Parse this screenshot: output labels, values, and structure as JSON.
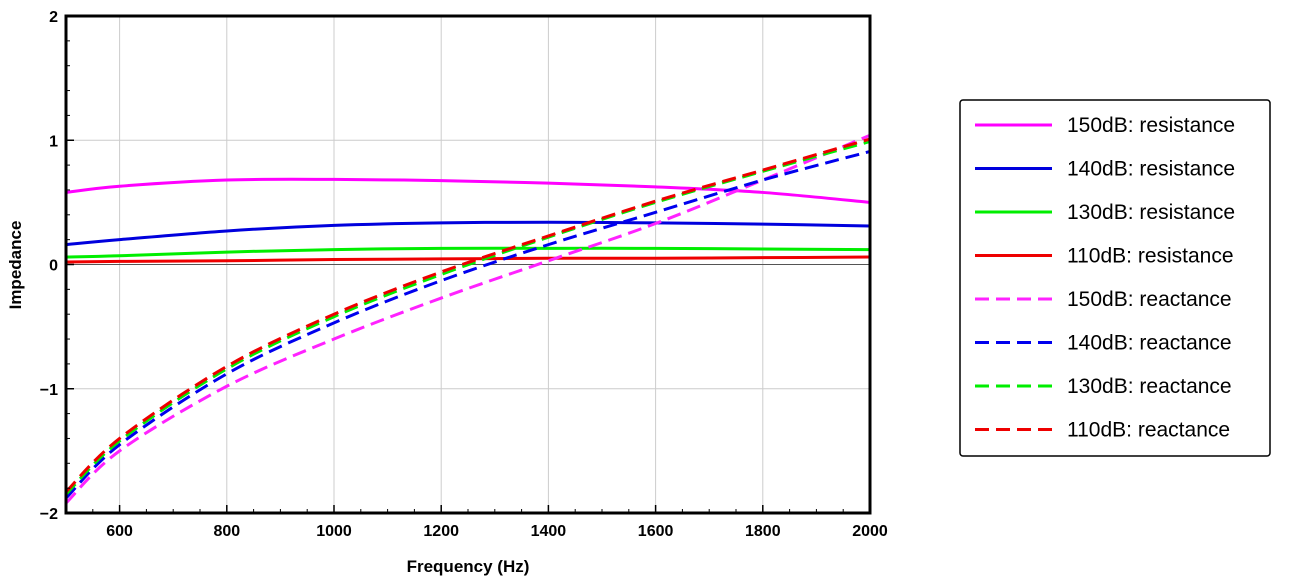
{
  "chart_data": {
    "type": "line",
    "title": "",
    "xlabel": "Frequency (Hz)",
    "ylabel": "Impedance",
    "xlim": [
      500,
      2000
    ],
    "ylim": [
      -2,
      2
    ],
    "x_ticks": [
      600,
      800,
      1000,
      1200,
      1400,
      1600,
      1800,
      2000
    ],
    "x_tick_labels": [
      "600",
      "800",
      "1000",
      "1200",
      "1400",
      "1600",
      "1800",
      "2000"
    ],
    "y_ticks": [
      -2,
      -1,
      0,
      1,
      2
    ],
    "y_tick_labels": [
      "−2",
      "−1",
      "0",
      "1",
      "2"
    ],
    "grid": true,
    "legend_position": "right",
    "x": [
      500,
      600,
      800,
      1000,
      1200,
      1400,
      1600,
      1800,
      2000
    ],
    "series": [
      {
        "name": "150dB: resistance",
        "color": "#ff00ff",
        "style": "solid",
        "values": [
          0.58,
          0.63,
          0.68,
          0.685,
          0.675,
          0.655,
          0.625,
          0.58,
          0.5
        ]
      },
      {
        "name": "140dB: resistance",
        "color": "#0000dd",
        "style": "solid",
        "values": [
          0.16,
          0.2,
          0.27,
          0.315,
          0.335,
          0.34,
          0.335,
          0.325,
          0.31
        ]
      },
      {
        "name": "130dB: resistance",
        "color": "#00ee00",
        "style": "solid",
        "values": [
          0.06,
          0.07,
          0.1,
          0.12,
          0.13,
          0.13,
          0.13,
          0.125,
          0.12
        ]
      },
      {
        "name": "110dB: resistance",
        "color": "#ee0000",
        "style": "solid",
        "values": [
          0.02,
          0.025,
          0.03,
          0.04,
          0.045,
          0.05,
          0.05,
          0.055,
          0.06
        ]
      },
      {
        "name": "150dB: reactance",
        "color": "#ff22ff",
        "style": "dashed",
        "values": [
          -1.92,
          -1.5,
          -0.98,
          -0.6,
          -0.27,
          0.03,
          0.33,
          0.68,
          1.04
        ]
      },
      {
        "name": "140dB: reactance",
        "color": "#0000ee",
        "style": "dashed",
        "values": [
          -1.88,
          -1.45,
          -0.88,
          -0.47,
          -0.13,
          0.16,
          0.42,
          0.68,
          0.91
        ]
      },
      {
        "name": "130dB: reactance",
        "color": "#00ee00",
        "style": "dashed",
        "values": [
          -1.85,
          -1.42,
          -0.84,
          -0.42,
          -0.08,
          0.22,
          0.5,
          0.75,
          0.99
        ]
      },
      {
        "name": "110dB: reactance",
        "color": "#ee0000",
        "style": "dashed",
        "values": [
          -1.83,
          -1.4,
          -0.82,
          -0.4,
          -0.06,
          0.23,
          0.51,
          0.76,
          1.01
        ]
      }
    ]
  }
}
